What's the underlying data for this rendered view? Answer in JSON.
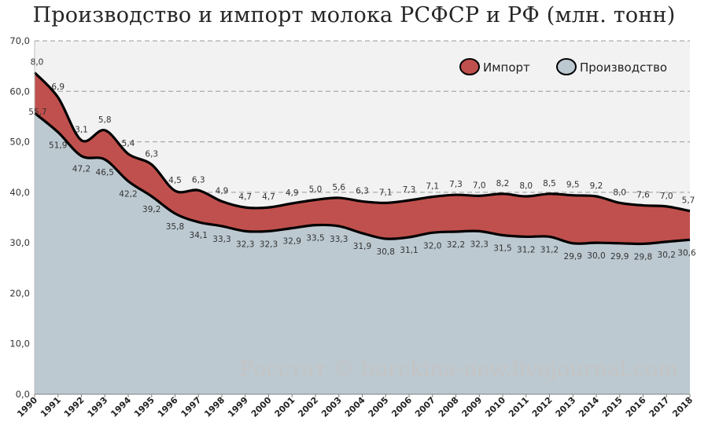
{
  "chart_data": {
    "type": "area",
    "title": "Производство и импорт молока РСФСР и РФ (млн. тонн)",
    "xlabel": "",
    "ylabel": "",
    "ylim": [
      0,
      70
    ],
    "yticks": [
      "0,0",
      "10,0",
      "20,0",
      "30,0",
      "40,0",
      "50,0",
      "60,0",
      "70,0"
    ],
    "grid": true,
    "legend_position": "top-right",
    "stacked": true,
    "x": [
      "1990",
      "1991",
      "1992",
      "1993",
      "1994",
      "1995",
      "1996",
      "1997",
      "1998",
      "1999",
      "2000",
      "2001",
      "2002",
      "2003",
      "2004",
      "2005",
      "2006",
      "2007",
      "2008",
      "2009",
      "2010",
      "2011",
      "2012",
      "2013",
      "2014",
      "2015",
      "2016",
      "2017",
      "2018"
    ],
    "series": [
      {
        "name": "Производство",
        "color": "#bcc9d1",
        "values": [
          55.7,
          51.9,
          47.2,
          46.5,
          42.2,
          39.2,
          35.8,
          34.1,
          33.3,
          32.3,
          32.3,
          32.9,
          33.5,
          33.3,
          31.9,
          30.8,
          31.1,
          32.0,
          32.2,
          32.3,
          31.5,
          31.2,
          31.2,
          29.9,
          30.0,
          29.9,
          29.8,
          30.2,
          30.6
        ],
        "labels": [
          "55,7",
          "51,9",
          "47,2",
          "46,5",
          "42,2",
          "39,2",
          "35,8",
          "34,1",
          "33,3",
          "32,3",
          "32,3",
          "32,9",
          "33,5",
          "33,3",
          "31,9",
          "30,8",
          "31,1",
          "32,0",
          "32,2",
          "32,3",
          "31,5",
          "31,2",
          "31,2",
          "29,9",
          "30,0",
          "29,9",
          "29,8",
          "30,2",
          "30,6"
        ]
      },
      {
        "name": "Импорт",
        "color": "#c0504d",
        "values": [
          8.0,
          6.9,
          3.1,
          5.8,
          5.4,
          6.3,
          4.5,
          6.3,
          4.9,
          4.7,
          4.7,
          4.9,
          5.0,
          5.6,
          6.3,
          7.1,
          7.3,
          7.1,
          7.3,
          7.0,
          8.2,
          8.0,
          8.5,
          9.5,
          9.2,
          8.0,
          7.6,
          7.0,
          5.7
        ],
        "labels": [
          "8,0",
          "6,9",
          "3,1",
          "5,8",
          "5,4",
          "6,3",
          "4,5",
          "6,3",
          "4,9",
          "4,7",
          "4,7",
          "4,9",
          "5,0",
          "5,6",
          "6,3",
          "7,1",
          "7,3",
          "7,1",
          "7,3",
          "7,0",
          "8,2",
          "8,0",
          "8,5",
          "9,5",
          "9,2",
          "8,0",
          "7,6",
          "7,0",
          "5,7"
        ]
      }
    ],
    "watermark": "Росстат © burckina-new.livejournal.com"
  }
}
